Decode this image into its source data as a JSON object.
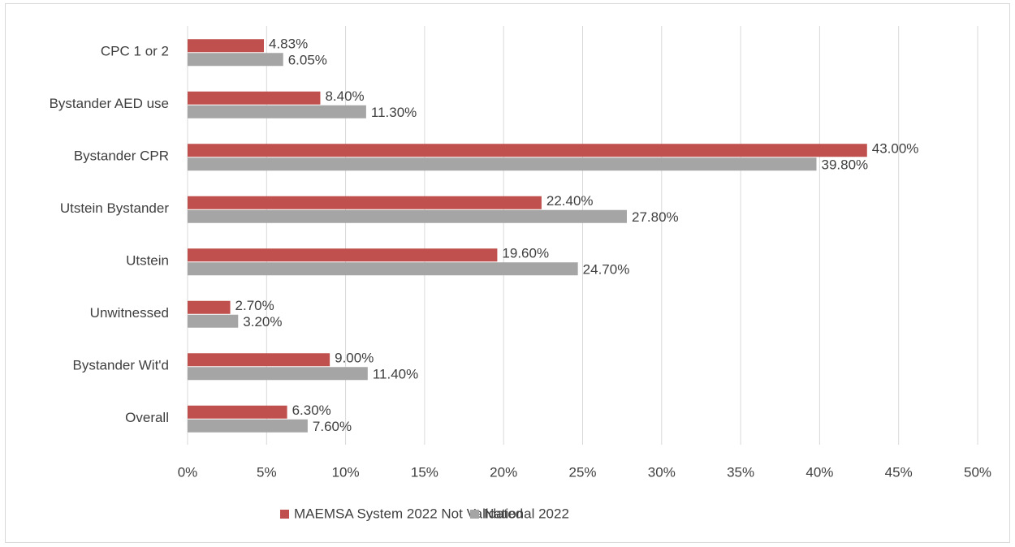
{
  "chart_data": {
    "type": "hbar",
    "categories": [
      "CPC 1 or 2",
      "Bystander AED use",
      "Bystander CPR",
      "Utstein Bystander",
      "Utstein",
      "Unwitnessed",
      "Bystander Wit'd",
      "Overall"
    ],
    "series": [
      {
        "name": "MAEMSA System 2022 Not Validated",
        "color": "#c0504d",
        "values": [
          4.83,
          8.4,
          43,
          22.4,
          19.6,
          2.7,
          9,
          6.3
        ],
        "value_labels": [
          "4.83%",
          "8.40%",
          "43.00%",
          "22.40%",
          "19.60%",
          "2.70%",
          "9.00%",
          "6.30%"
        ]
      },
      {
        "name": "National 2022",
        "color": "#a5a5a5",
        "values": [
          6.05,
          11.3,
          39.8,
          27.8,
          24.7,
          3.2,
          11.4,
          7.6
        ],
        "value_labels": [
          "6.05%",
          "11.30%",
          "39.80%",
          "27.80%",
          "24.70%",
          "3.20%",
          "11.40%",
          "7.60%"
        ]
      }
    ],
    "xlim": [
      0,
      50
    ],
    "xticks": [
      {
        "value": 0,
        "label": "0%"
      },
      {
        "value": 5,
        "label": "5%"
      },
      {
        "value": 10,
        "label": "10%"
      },
      {
        "value": 15,
        "label": "15%"
      },
      {
        "value": 20,
        "label": "20%"
      },
      {
        "value": 25,
        "label": "25%"
      },
      {
        "value": 30,
        "label": "30%"
      },
      {
        "value": 35,
        "label": "35%"
      },
      {
        "value": 40,
        "label": "40%"
      },
      {
        "value": 45,
        "label": "45%"
      },
      {
        "value": 50,
        "label": "50%"
      }
    ],
    "grid": true,
    "legend": "bottom"
  }
}
